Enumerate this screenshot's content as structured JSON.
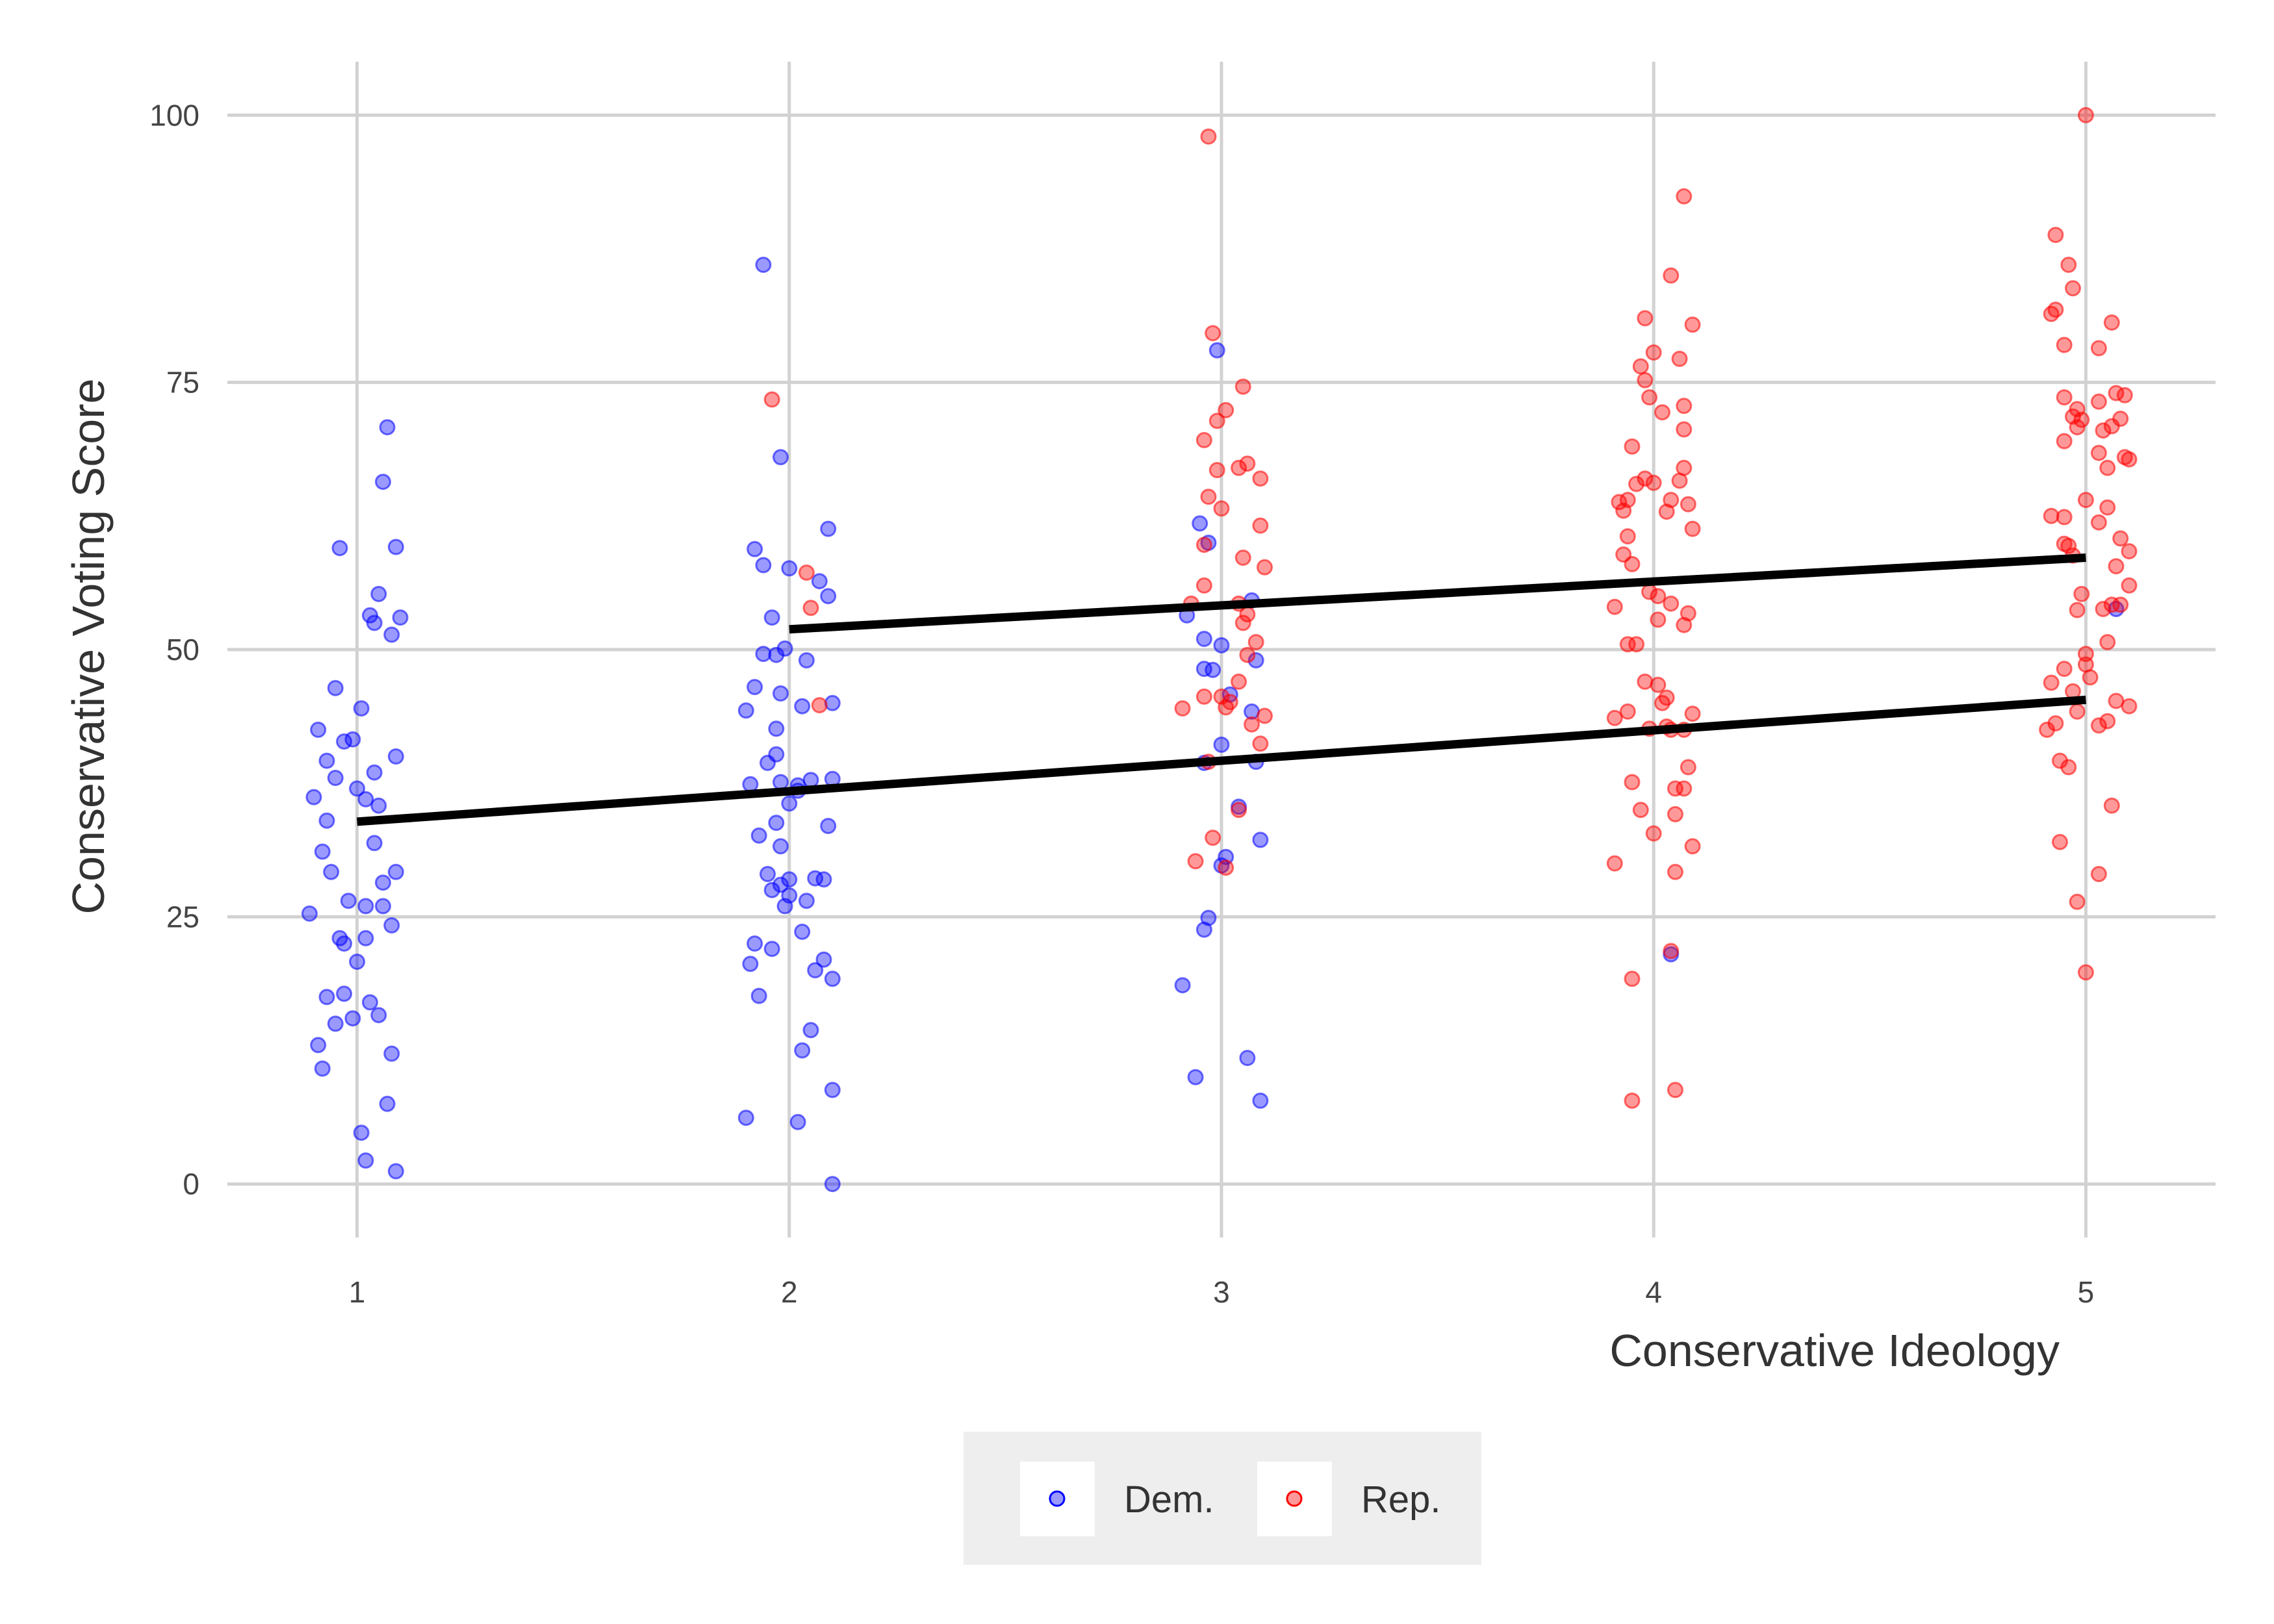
{
  "chart_data": {
    "type": "scatter",
    "xlabel": "Conservative Ideology",
    "ylabel": "Conservative Voting Score",
    "xlim": [
      0.7,
      5.3
    ],
    "ylim": [
      -5,
      105
    ],
    "x_ticks": [
      1,
      2,
      3,
      4,
      5
    ],
    "y_ticks": [
      0,
      25,
      50,
      75,
      100
    ],
    "grid": true,
    "legend_position": "bottom",
    "series": [
      {
        "name": "Dem.",
        "color": "#0000FF",
        "points": [
          [
            0.91,
            42.5
          ],
          [
            0.93,
            39.6
          ],
          [
            0.95,
            46.4
          ],
          [
            0.97,
            41.4
          ],
          [
            0.99,
            41.6
          ],
          [
            1.01,
            44.5
          ],
          [
            1.03,
            53.2
          ],
          [
            1.05,
            55.2
          ],
          [
            1.07,
            70.8
          ],
          [
            1.09,
            59.6
          ],
          [
            0.96,
            59.5
          ],
          [
            1.04,
            52.5
          ],
          [
            1.06,
            65.7
          ],
          [
            1.08,
            51.4
          ],
          [
            1.1,
            53.0
          ],
          [
            0.9,
            36.2
          ],
          [
            0.92,
            31.1
          ],
          [
            0.94,
            29.2
          ],
          [
            0.96,
            23.0
          ],
          [
            0.98,
            26.5
          ],
          [
            1.0,
            20.8
          ],
          [
            1.02,
            26.0
          ],
          [
            1.04,
            31.9
          ],
          [
            1.06,
            28.2
          ],
          [
            1.08,
            24.2
          ],
          [
            0.89,
            25.3
          ],
          [
            0.91,
            13.0
          ],
          [
            0.93,
            17.5
          ],
          [
            0.95,
            15.0
          ],
          [
            0.97,
            17.8
          ],
          [
            0.99,
            15.5
          ],
          [
            1.01,
            4.8
          ],
          [
            1.03,
            17.0
          ],
          [
            1.05,
            15.8
          ],
          [
            1.07,
            7.5
          ],
          [
            1.09,
            29.2
          ],
          [
            1.02,
            2.2
          ],
          [
            1.09,
            1.2
          ],
          [
            0.92,
            10.8
          ],
          [
            1.08,
            12.2
          ],
          [
            0.95,
            38.0
          ],
          [
            1.0,
            37.0
          ],
          [
            1.02,
            36.0
          ],
          [
            1.05,
            35.4
          ],
          [
            1.09,
            40.0
          ],
          [
            0.97,
            22.5
          ],
          [
            1.02,
            23.0
          ],
          [
            1.06,
            26.0
          ],
          [
            0.93,
            34.0
          ],
          [
            1.04,
            38.5
          ],
          [
            1.94,
            86.0
          ],
          [
            1.98,
            68.0
          ],
          [
            2.09,
            61.3
          ],
          [
            1.92,
            59.4
          ],
          [
            1.94,
            57.9
          ],
          [
            2.0,
            57.6
          ],
          [
            2.07,
            56.4
          ],
          [
            2.09,
            55.0
          ],
          [
            1.96,
            53.0
          ],
          [
            1.94,
            49.6
          ],
          [
            1.97,
            49.5
          ],
          [
            1.99,
            50.1
          ],
          [
            2.04,
            49.0
          ],
          [
            1.92,
            46.5
          ],
          [
            1.9,
            44.3
          ],
          [
            1.98,
            45.9
          ],
          [
            2.03,
            44.7
          ],
          [
            1.97,
            42.6
          ],
          [
            1.95,
            39.4
          ],
          [
            1.97,
            40.2
          ],
          [
            1.91,
            37.4
          ],
          [
            1.98,
            37.6
          ],
          [
            2.02,
            37.3
          ],
          [
            2.05,
            37.8
          ],
          [
            2.1,
            37.9
          ],
          [
            1.97,
            33.8
          ],
          [
            2.0,
            35.6
          ],
          [
            2.09,
            33.5
          ],
          [
            1.93,
            32.6
          ],
          [
            1.98,
            31.6
          ],
          [
            1.95,
            29.0
          ],
          [
            2.0,
            27.0
          ],
          [
            2.06,
            28.6
          ],
          [
            1.99,
            26.0
          ],
          [
            1.92,
            22.5
          ],
          [
            1.96,
            22.0
          ],
          [
            1.91,
            20.6
          ],
          [
            2.03,
            23.6
          ],
          [
            2.08,
            21.0
          ],
          [
            2.1,
            19.2
          ],
          [
            1.93,
            17.6
          ],
          [
            2.05,
            14.4
          ],
          [
            2.03,
            12.5
          ],
          [
            2.1,
            8.8
          ],
          [
            1.9,
            6.2
          ],
          [
            2.02,
            5.8
          ],
          [
            2.1,
            0.0
          ],
          [
            2.08,
            28.5
          ],
          [
            1.98,
            28.0
          ],
          [
            2.04,
            26.5
          ],
          [
            2.0,
            28.5
          ],
          [
            2.06,
            20.0
          ],
          [
            2.1,
            45.0
          ],
          [
            1.96,
            27.5
          ],
          [
            2.02,
            36.8
          ],
          [
            2.99,
            78.0
          ],
          [
            2.95,
            61.8
          ],
          [
            2.97,
            60.0
          ],
          [
            2.92,
            53.2
          ],
          [
            2.96,
            51.0
          ],
          [
            3.0,
            50.4
          ],
          [
            3.07,
            54.6
          ],
          [
            2.96,
            48.2
          ],
          [
            2.98,
            48.1
          ],
          [
            3.08,
            49.0
          ],
          [
            3.02,
            45.8
          ],
          [
            3.07,
            44.2
          ],
          [
            3.0,
            41.1
          ],
          [
            2.96,
            39.4
          ],
          [
            3.08,
            39.5
          ],
          [
            3.04,
            35.3
          ],
          [
            3.09,
            32.2
          ],
          [
            3.01,
            30.6
          ],
          [
            3.0,
            29.8
          ],
          [
            2.97,
            24.9
          ],
          [
            2.96,
            23.8
          ],
          [
            2.91,
            18.6
          ],
          [
            2.94,
            10.0
          ],
          [
            3.06,
            11.8
          ],
          [
            3.09,
            7.8
          ],
          [
            4.04,
            21.5
          ],
          [
            5.07,
            53.8
          ]
        ]
      },
      {
        "name": "Rep.",
        "color": "#FF0000",
        "points": [
          [
            1.96,
            73.4
          ],
          [
            2.04,
            57.2
          ],
          [
            2.05,
            53.9
          ],
          [
            2.07,
            44.8
          ],
          [
            2.97,
            98.0
          ],
          [
            2.98,
            79.6
          ],
          [
            3.05,
            74.6
          ],
          [
            3.01,
            72.4
          ],
          [
            2.99,
            71.4
          ],
          [
            2.96,
            69.6
          ],
          [
            2.99,
            66.8
          ],
          [
            3.04,
            67.0
          ],
          [
            3.06,
            67.4
          ],
          [
            3.09,
            66.0
          ],
          [
            2.97,
            64.3
          ],
          [
            3.0,
            63.2
          ],
          [
            3.09,
            61.6
          ],
          [
            2.96,
            59.8
          ],
          [
            3.05,
            58.6
          ],
          [
            3.1,
            57.7
          ],
          [
            2.96,
            56.0
          ],
          [
            3.04,
            54.3
          ],
          [
            2.93,
            54.3
          ],
          [
            3.06,
            53.3
          ],
          [
            3.05,
            52.5
          ],
          [
            3.08,
            50.7
          ],
          [
            3.06,
            49.5
          ],
          [
            3.04,
            47.0
          ],
          [
            3.0,
            45.6
          ],
          [
            3.02,
            45.1
          ],
          [
            2.96,
            45.6
          ],
          [
            3.01,
            44.6
          ],
          [
            2.91,
            44.5
          ],
          [
            3.07,
            43.0
          ],
          [
            3.1,
            43.8
          ],
          [
            3.09,
            41.2
          ],
          [
            2.97,
            39.5
          ],
          [
            3.04,
            35.0
          ],
          [
            2.98,
            32.4
          ],
          [
            2.94,
            30.2
          ],
          [
            3.01,
            29.6
          ],
          [
            4.07,
            92.4
          ],
          [
            4.04,
            85.0
          ],
          [
            3.98,
            81.0
          ],
          [
            4.09,
            80.4
          ],
          [
            3.97,
            76.5
          ],
          [
            4.06,
            77.2
          ],
          [
            4.0,
            77.8
          ],
          [
            3.98,
            75.2
          ],
          [
            3.99,
            73.6
          ],
          [
            4.02,
            72.2
          ],
          [
            4.07,
            72.8
          ],
          [
            4.07,
            70.6
          ],
          [
            3.95,
            69.0
          ],
          [
            3.98,
            66.0
          ],
          [
            4.07,
            67.0
          ],
          [
            4.06,
            65.8
          ],
          [
            3.96,
            65.5
          ],
          [
            4.0,
            65.6
          ],
          [
            4.04,
            64.0
          ],
          [
            3.92,
            63.8
          ],
          [
            3.94,
            64.0
          ],
          [
            4.08,
            63.6
          ],
          [
            4.03,
            62.9
          ],
          [
            3.93,
            63.0
          ],
          [
            4.09,
            61.3
          ],
          [
            3.94,
            60.6
          ],
          [
            3.93,
            58.9
          ],
          [
            3.95,
            58.0
          ],
          [
            3.99,
            55.4
          ],
          [
            4.01,
            55.0
          ],
          [
            4.04,
            54.3
          ],
          [
            3.91,
            54.0
          ],
          [
            4.08,
            53.4
          ],
          [
            4.01,
            52.8
          ],
          [
            4.07,
            52.3
          ],
          [
            3.96,
            50.5
          ],
          [
            3.94,
            50.5
          ],
          [
            3.98,
            47.0
          ],
          [
            4.01,
            46.7
          ],
          [
            4.03,
            45.5
          ],
          [
            4.02,
            45.0
          ],
          [
            3.94,
            44.2
          ],
          [
            4.09,
            44.0
          ],
          [
            3.91,
            43.6
          ],
          [
            3.99,
            42.6
          ],
          [
            4.03,
            42.8
          ],
          [
            4.04,
            42.5
          ],
          [
            4.07,
            42.5
          ],
          [
            4.08,
            39.0
          ],
          [
            3.95,
            37.6
          ],
          [
            4.05,
            37.0
          ],
          [
            4.07,
            37.0
          ],
          [
            3.97,
            35.0
          ],
          [
            4.05,
            34.6
          ],
          [
            4.0,
            32.8
          ],
          [
            4.09,
            31.6
          ],
          [
            3.91,
            30.0
          ],
          [
            4.05,
            29.2
          ],
          [
            4.04,
            21.8
          ],
          [
            3.95,
            19.2
          ],
          [
            3.95,
            7.8
          ],
          [
            4.05,
            8.8
          ],
          [
            5.0,
            100.0
          ],
          [
            4.93,
            88.8
          ],
          [
            4.96,
            86.0
          ],
          [
            4.92,
            81.4
          ],
          [
            4.93,
            81.8
          ],
          [
            4.97,
            83.8
          ],
          [
            5.06,
            80.6
          ],
          [
            5.03,
            78.2
          ],
          [
            4.95,
            78.5
          ],
          [
            5.09,
            73.8
          ],
          [
            5.07,
            74.0
          ],
          [
            4.95,
            73.6
          ],
          [
            4.98,
            72.5
          ],
          [
            5.03,
            73.2
          ],
          [
            4.97,
            71.8
          ],
          [
            4.99,
            71.5
          ],
          [
            5.06,
            70.9
          ],
          [
            5.04,
            70.5
          ],
          [
            4.98,
            70.8
          ],
          [
            5.08,
            71.6
          ],
          [
            5.05,
            67.0
          ],
          [
            4.95,
            69.5
          ],
          [
            5.03,
            68.4
          ],
          [
            5.1,
            67.8
          ],
          [
            5.09,
            68.0
          ],
          [
            5.0,
            64.0
          ],
          [
            5.05,
            63.3
          ],
          [
            4.92,
            62.5
          ],
          [
            4.95,
            62.4
          ],
          [
            5.03,
            61.9
          ],
          [
            5.08,
            60.4
          ],
          [
            4.96,
            59.7
          ],
          [
            5.1,
            59.2
          ],
          [
            4.95,
            59.9
          ],
          [
            5.07,
            57.8
          ],
          [
            4.97,
            58.8
          ],
          [
            5.1,
            56.0
          ],
          [
            4.99,
            55.2
          ],
          [
            5.06,
            54.2
          ],
          [
            4.98,
            53.7
          ],
          [
            5.04,
            53.8
          ],
          [
            5.08,
            54.2
          ],
          [
            5.05,
            50.7
          ],
          [
            5.0,
            49.6
          ],
          [
            5.0,
            48.6
          ],
          [
            4.95,
            48.2
          ],
          [
            5.01,
            47.4
          ],
          [
            4.92,
            46.9
          ],
          [
            4.97,
            46.1
          ],
          [
            5.07,
            45.2
          ],
          [
            5.1,
            44.7
          ],
          [
            4.98,
            44.2
          ],
          [
            5.05,
            43.3
          ],
          [
            4.93,
            43.1
          ],
          [
            4.91,
            42.5
          ],
          [
            5.03,
            42.9
          ],
          [
            4.96,
            39.0
          ],
          [
            4.94,
            39.6
          ],
          [
            5.03,
            29.0
          ],
          [
            4.94,
            32.0
          ],
          [
            5.06,
            35.4
          ],
          [
            4.98,
            26.4
          ],
          [
            5.0,
            19.8
          ]
        ]
      }
    ],
    "fit_lines": [
      {
        "name": "Dem.",
        "x": [
          1,
          5
        ],
        "y": [
          33.9,
          45.3
        ],
        "color": "#000000"
      },
      {
        "name": "Rep.",
        "x": [
          2,
          5
        ],
        "y": [
          51.9,
          58.6
        ],
        "color": "#000000"
      }
    ]
  }
}
